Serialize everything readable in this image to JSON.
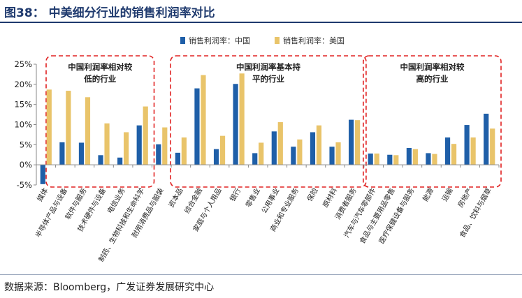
{
  "figure": {
    "title": "图38：  中美细分行业的销售利润率对比",
    "source": "数据来源：Bloomberg，广发证券发展研究中心"
  },
  "chart_data": {
    "type": "bar",
    "categories": [
      "媒体",
      "半导体产品与设备",
      "软件与服务",
      "技术硬件与设备",
      "电信业务",
      "制药、生物科技和生命科学",
      "耐用消费品与服装",
      "资本品",
      "综合金融",
      "家庭与个人用品",
      "银行",
      "零售业",
      "公用事业",
      "商业和专业服务",
      "保险",
      "原材料",
      "消费者服务",
      "汽车与汽车零部件",
      "食品与主要用品零售",
      "医疗保健设备与服务",
      "能源",
      "运输",
      "房地产",
      "食品、饮料与烟草"
    ],
    "series": [
      {
        "name": "销售利润率：中国",
        "color": "#1f5fa8",
        "values": [
          -4.8,
          5.6,
          5.5,
          2.4,
          1.8,
          9.8,
          5.1,
          3.0,
          19.0,
          3.9,
          20.1,
          2.9,
          8.3,
          4.5,
          8.1,
          4.5,
          11.2,
          2.8,
          2.5,
          4.2,
          2.9,
          6.8,
          9.9,
          12.7
        ]
      },
      {
        "name": "销售利润率：美国",
        "color": "#e9c46a",
        "values": [
          18.7,
          18.4,
          16.8,
          10.3,
          8.1,
          14.5,
          9.3,
          6.8,
          22.3,
          7.2,
          22.7,
          5.5,
          10.6,
          6.3,
          9.8,
          5.6,
          11.1,
          2.8,
          2.4,
          3.9,
          2.7,
          5.2,
          6.8,
          9.0
        ]
      }
    ],
    "ylim": [
      -5,
      25
    ],
    "yticks": [
      -5,
      0,
      5,
      10,
      15,
      20,
      25
    ],
    "ytick_labels": [
      "-5%",
      "0%",
      "5%",
      "10%",
      "15%",
      "20%",
      "25%"
    ],
    "legend_position": "top-center",
    "grid": false,
    "annotations": [
      {
        "lines": [
          "中国利润率相对较",
          "低的行业"
        ],
        "from": 0,
        "to": 5
      },
      {
        "lines": [
          "中国利润率基本持",
          "平的行业"
        ],
        "from": 7,
        "to": 16
      },
      {
        "lines": [
          "中国利润率相对较",
          "高的行业"
        ],
        "from": 17,
        "to": 23
      }
    ],
    "annotation_style": {
      "box_color": "#e02020"
    }
  }
}
